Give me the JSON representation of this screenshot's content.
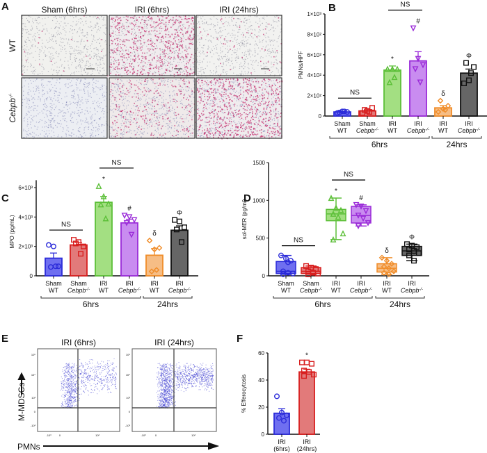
{
  "panel_letters": {
    "a": "A",
    "b": "B",
    "c": "C",
    "d": "D",
    "e": "E",
    "f": "F"
  },
  "panel_a": {
    "columns": [
      "Sham (6hrs)",
      "IRI (6hrs)",
      "IRI (24hrs)"
    ],
    "rows": [
      {
        "label": "WT",
        "sup": ""
      },
      {
        "label": "Cebpb",
        "sup": "-/-"
      }
    ]
  },
  "categories": [
    {
      "line1": "Sham",
      "line2": "WT",
      "sup": "",
      "color": "#2b2bd9",
      "fill": "#6f6ff0",
      "marker": "circle"
    },
    {
      "line1": "Sham",
      "line2": "Cebpb",
      "sup": "-/-",
      "color": "#d81e1e",
      "fill": "#e27a7a",
      "marker": "square"
    },
    {
      "line1": "IRI",
      "line2": "WT",
      "sup": "",
      "color": "#5cbf38",
      "fill": "#a3df82",
      "marker": "triangle-up"
    },
    {
      "line1": "IRI",
      "line2": "Cebpb",
      "sup": "-/-",
      "color": "#9a2bd8",
      "fill": "#c98cf0",
      "marker": "triangle-down"
    },
    {
      "line1": "IRI",
      "line2": "WT",
      "sup": "",
      "color": "#f08c28",
      "fill": "#f6bd85",
      "marker": "diamond"
    },
    {
      "line1": "IRI",
      "line2": "Cebpb",
      "sup": "-/-",
      "color": "#111111",
      "fill": "#666666",
      "marker": "square"
    }
  ],
  "groups": [
    {
      "label": "6hrs",
      "from": 0,
      "to": 3
    },
    {
      "label": "24hrs",
      "from": 4,
      "to": 5
    }
  ],
  "chart_data": [
    {
      "panel": "B",
      "type": "bar",
      "ylabel": "PMNs/HPF",
      "ylim": [
        0,
        1000
      ],
      "yticks": [
        0,
        200,
        400,
        600,
        800,
        1000
      ],
      "yticklabels": [
        "0",
        "2×10²",
        "4×10²",
        "6×10²",
        "8×10²",
        "1×10³"
      ],
      "means": [
        40,
        50,
        450,
        540,
        80,
        420
      ],
      "sem": [
        5,
        12,
        40,
        90,
        22,
        40
      ],
      "points": [
        [
          30,
          45,
          40,
          35,
          45
        ],
        [
          30,
          50,
          80,
          60,
          40
        ],
        [
          460,
          460,
          460,
          330,
          380
        ],
        [
          860,
          560,
          500,
          460,
          330
        ],
        [
          40,
          70,
          100,
          150,
          60
        ],
        [
          320,
          350,
          480,
          520,
          420
        ]
      ],
      "annotations": [
        {
          "index": 2,
          "text": "*"
        },
        {
          "index": 3,
          "text": "#"
        },
        {
          "index": 4,
          "text": "δ"
        },
        {
          "index": 5,
          "text": "Φ"
        }
      ],
      "brackets": [
        {
          "from": 0,
          "to": 1,
          "text": "NS"
        },
        {
          "from": 2,
          "to": 3,
          "text": "NS"
        }
      ]
    },
    {
      "panel": "C",
      "type": "bar",
      "ylabel": "MPO (pg/mL)",
      "ylim": [
        0,
        6500
      ],
      "yticks": [
        0,
        2000,
        4000,
        6000
      ],
      "yticklabels": [
        "0",
        "2×10³",
        "4×10³",
        "6×10³"
      ],
      "means": [
        1200,
        2100,
        5000,
        3600,
        1400,
        3100
      ],
      "sem": [
        350,
        170,
        400,
        250,
        450,
        300
      ],
      "points": [
        [
          2100,
          2000,
          650,
          600,
          650
        ],
        [
          2450,
          2300,
          2000,
          2200,
          1500
        ],
        [
          6100,
          5400,
          4900,
          4850,
          3900
        ],
        [
          4100,
          4000,
          3800,
          3600,
          2800
        ],
        [
          2400,
          1800,
          1900,
          300,
          400
        ],
        [
          3800,
          3700,
          3300,
          3150,
          2300
        ]
      ],
      "annotations": [
        {
          "index": 3,
          "text": "#"
        },
        {
          "index": 4,
          "text": "δ"
        },
        {
          "index": 5,
          "text": "Φ"
        },
        {
          "index": 2,
          "text": "*"
        }
      ],
      "brackets": [
        {
          "from": 0,
          "to": 1,
          "text": "NS"
        },
        {
          "from": 2,
          "to": 3,
          "text": "NS"
        }
      ]
    },
    {
      "panel": "D",
      "type": "box",
      "ylabel": "sol-MER (pg/ml)",
      "ylim": [
        0,
        1500
      ],
      "yticks": [
        0,
        500,
        1000,
        1500
      ],
      "yticklabels": [
        "0",
        "500",
        "1000",
        "1500"
      ],
      "boxes": [
        [
          20,
          30,
          60,
          190,
          270
        ],
        [
          20,
          30,
          60,
          110,
          130
        ],
        [
          480,
          730,
          820,
          880,
          1030
        ],
        [
          660,
          700,
          800,
          920,
          940
        ],
        [
          20,
          50,
          100,
          160,
          240
        ],
        [
          200,
          270,
          330,
          390,
          420
        ]
      ],
      "points": [
        [
          270,
          230,
          200,
          60,
          40,
          30,
          20,
          180
        ],
        [
          130,
          110,
          90,
          60,
          40,
          30,
          20
        ],
        [
          1030,
          900,
          870,
          820,
          780,
          560,
          480
        ],
        [
          940,
          920,
          860,
          800,
          760,
          700,
          660
        ],
        [
          240,
          200,
          160,
          120,
          100,
          60,
          40,
          20
        ],
        [
          420,
          400,
          380,
          350,
          330,
          300,
          270,
          200
        ]
      ],
      "annotations": [
        {
          "index": 2,
          "text": "*"
        },
        {
          "index": 3,
          "text": "#"
        },
        {
          "index": 4,
          "text": "δ"
        },
        {
          "index": 5,
          "text": "Φ"
        }
      ],
      "brackets": [
        {
          "from": 0,
          "to": 1,
          "text": "NS"
        },
        {
          "from": 2,
          "to": 3,
          "text": "NS"
        }
      ]
    },
    {
      "panel": "F",
      "type": "bar",
      "ylabel": "% Efferocytosis",
      "ylim": [
        0,
        60
      ],
      "yticks": [
        0,
        20,
        40,
        60
      ],
      "yticklabels": [
        "0",
        "20",
        "40",
        "60"
      ],
      "categories": [
        {
          "line1": "IRI",
          "line2": "(6hrs)",
          "color": "#2b2bd9",
          "fill": "#6f6ff0",
          "marker": "circle"
        },
        {
          "line1": "IRI",
          "line2": "(24hrs)",
          "color": "#d81e1e",
          "fill": "#e27a7a",
          "marker": "square"
        }
      ],
      "means": [
        15.5,
        46
      ],
      "sem": [
        3.3,
        2
      ],
      "points": [
        [
          28,
          16,
          14,
          12,
          10
        ],
        [
          53,
          53,
          52,
          47,
          46,
          44,
          43
        ]
      ],
      "annotations": [
        {
          "index": 1,
          "text": "*"
        }
      ]
    }
  ],
  "panel_e": {
    "plots": [
      {
        "title": "IRI (6hrs)"
      },
      {
        "title": "IRI (24hrs)"
      }
    ],
    "yticklabels": [
      "10⁵",
      "10⁴",
      "10³",
      "0",
      "-10³"
    ],
    "xticklabels": [
      "-10³",
      "0",
      "10³"
    ],
    "ylabel": "M-MDSCs",
    "xlabel": "PMNs",
    "dot_color": "#3a3ad0"
  }
}
